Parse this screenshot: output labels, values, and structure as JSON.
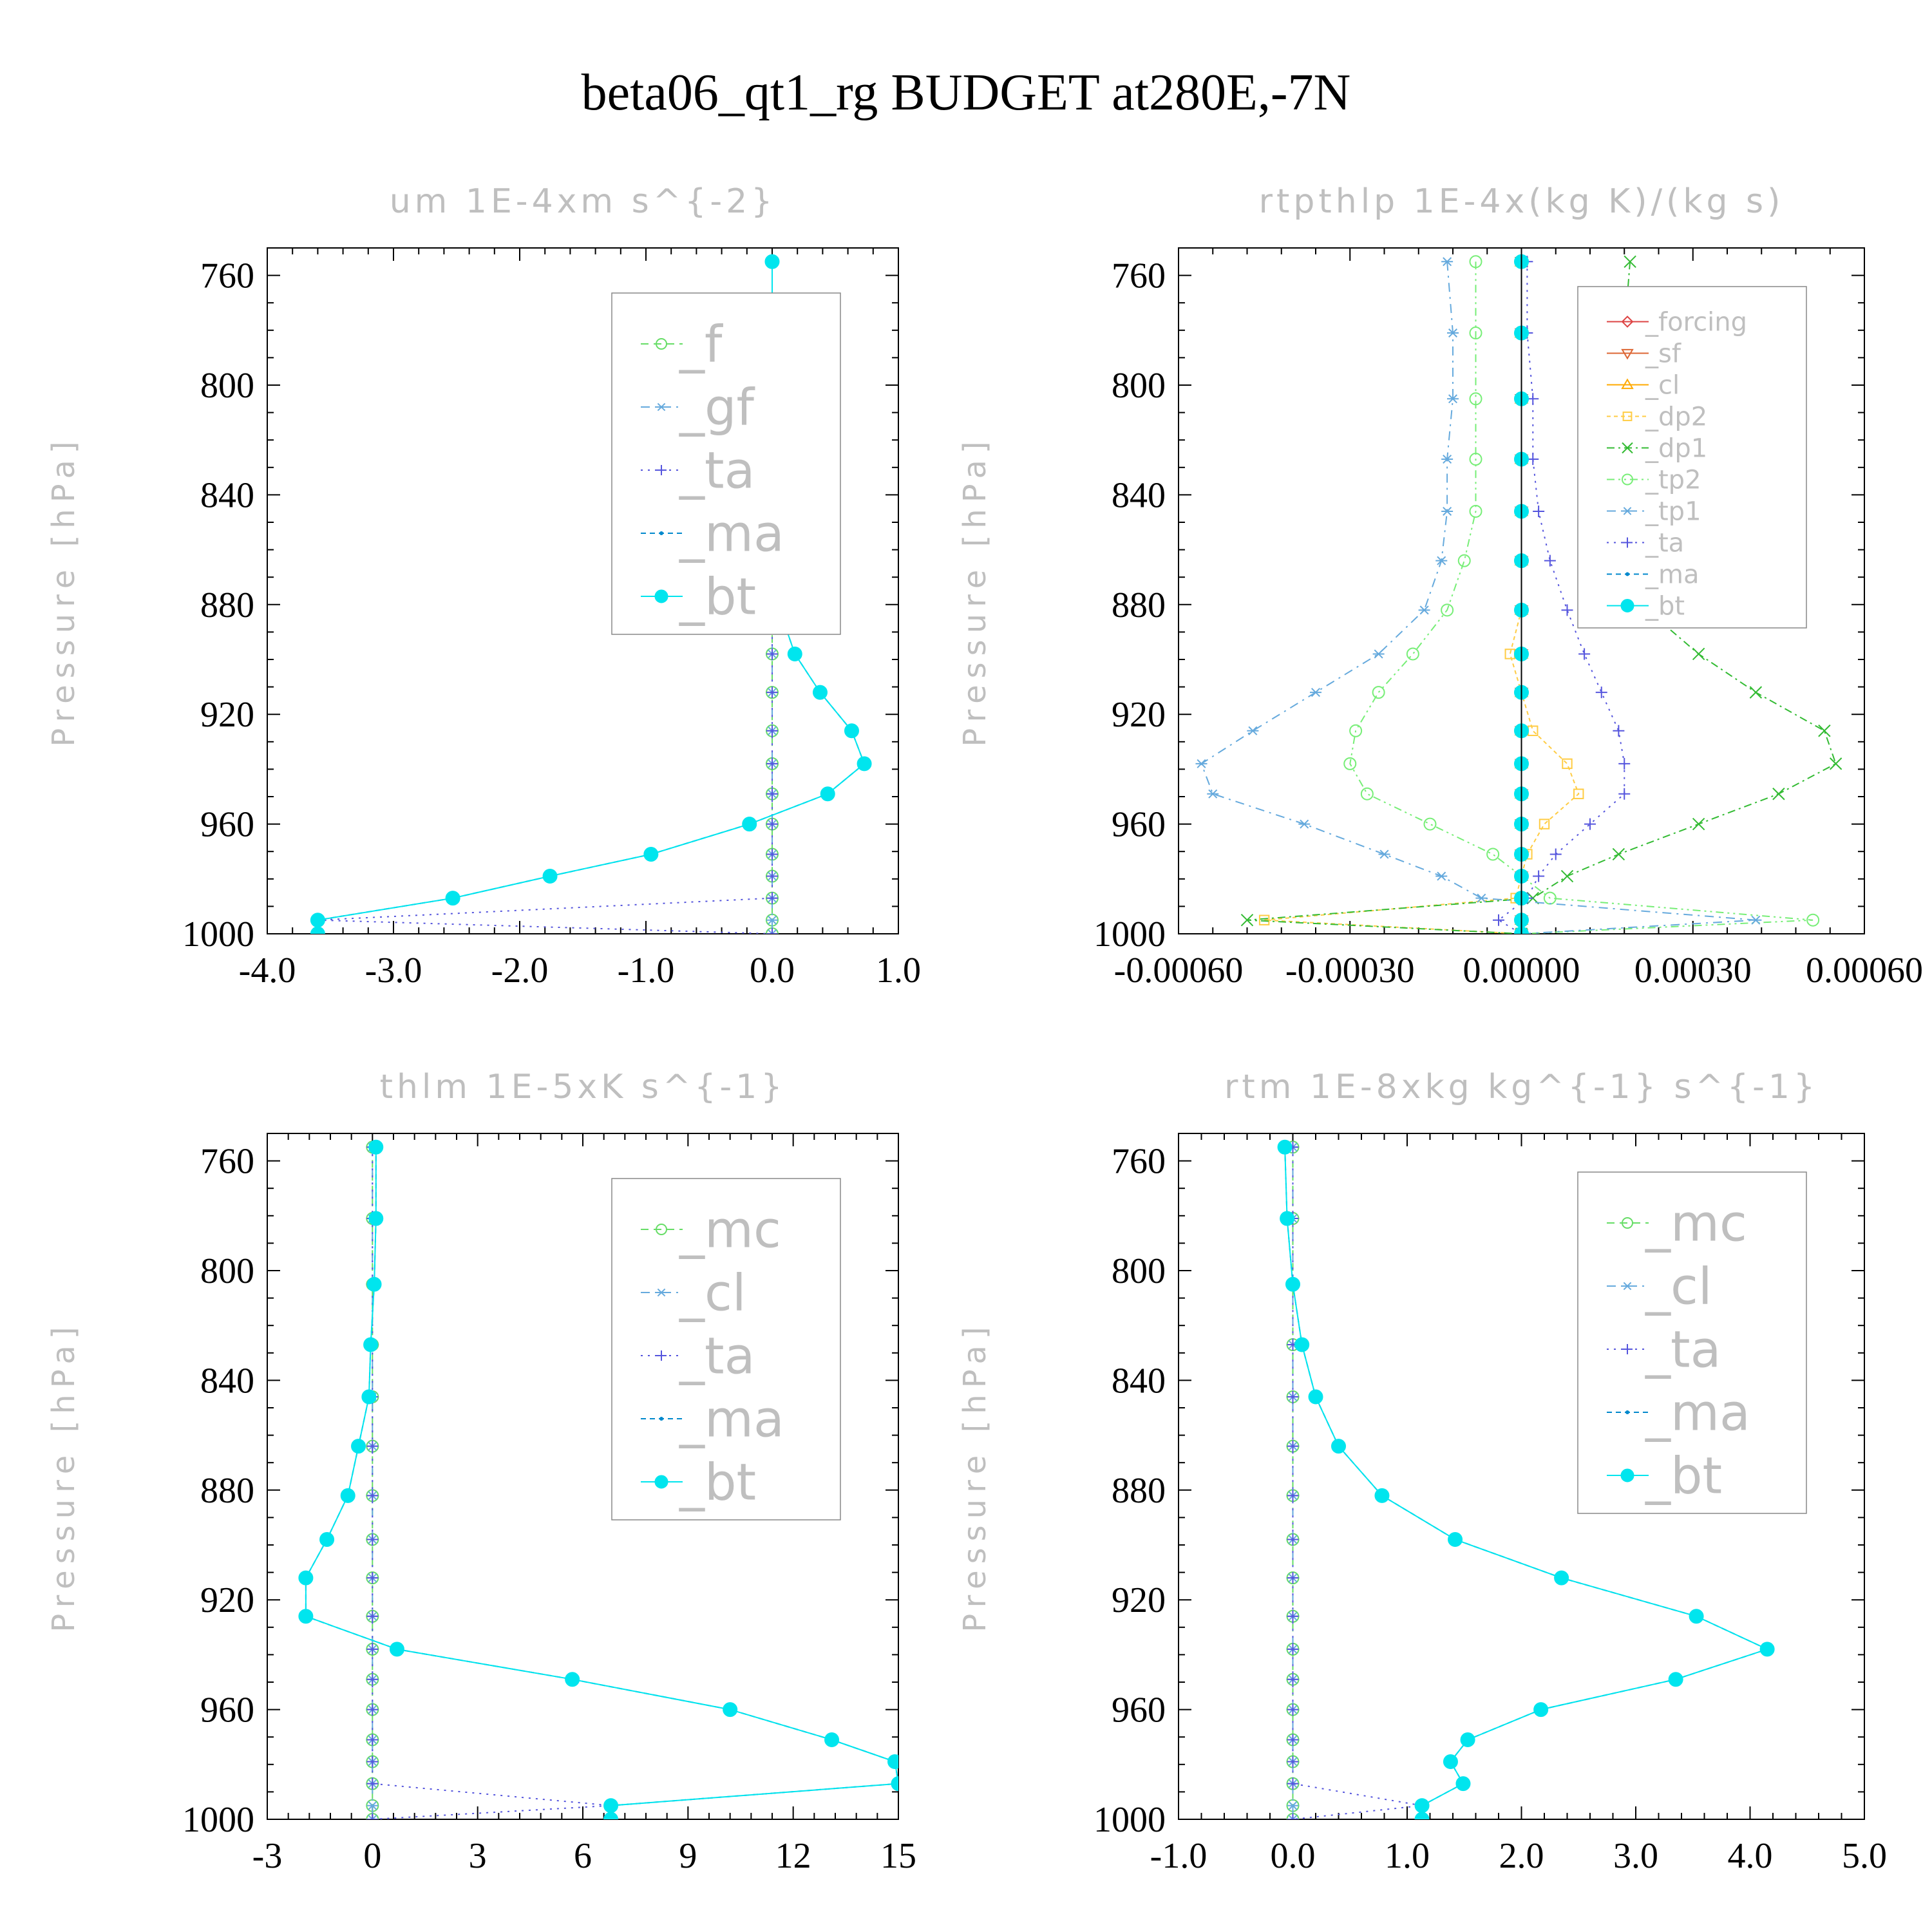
{
  "figure": {
    "title": "beta06_qt1_rg  BUDGET at280E,-7N"
  },
  "chart_data": [
    {
      "type": "line",
      "title": "um   1E-4xm s^{-2}",
      "ylabel": "Pressure [hPa]",
      "xlabel": "",
      "xlim": [
        -4.0,
        1.0
      ],
      "ylim": [
        750,
        1000
      ],
      "y_reversed": true,
      "xticks": [
        -4.0,
        -3.0,
        -2.0,
        -1.0,
        0.0,
        1.0
      ],
      "xticklabels": [
        "-4.0",
        "-3.0",
        "-2.0",
        "-1.0",
        "0.0",
        "1.0"
      ],
      "yticks": [
        760,
        800,
        840,
        880,
        920,
        960,
        1000
      ],
      "yticklabels": [
        "760",
        "800",
        "840",
        "880",
        "920",
        "960",
        "1000"
      ],
      "legend_position": "top-right",
      "pressure": [
        755,
        781,
        805,
        827,
        846,
        864,
        882,
        898,
        912,
        926,
        938,
        949,
        960,
        971,
        979,
        987,
        995,
        1000
      ],
      "series": [
        {
          "name": "_f",
          "color": "#66dd66",
          "marker": "circle-open",
          "dash": "12,8",
          "values": [
            0,
            0,
            0,
            0,
            0,
            0,
            0,
            0,
            0,
            0,
            0,
            0,
            0,
            0,
            0,
            0,
            0,
            0
          ]
        },
        {
          "name": "_gf",
          "color": "#66aadd",
          "marker": "asterisk",
          "dash": "14,8,3,8",
          "values": [
            0,
            0,
            0,
            0,
            0,
            0,
            0,
            0,
            0,
            0,
            0,
            0,
            0,
            0,
            0,
            0,
            0,
            0
          ]
        },
        {
          "name": "_ta",
          "color": "#5555dd",
          "marker": "plus",
          "dash": "3,8",
          "values": [
            0,
            0,
            0,
            0,
            0,
            0,
            0,
            0,
            0,
            0,
            0,
            0,
            0,
            0,
            0,
            0,
            -3.6,
            0
          ]
        },
        {
          "name": "_ma",
          "color": "#0088cc",
          "marker": "dot",
          "dash": "8,6",
          "values": [
            0,
            0,
            0,
            0,
            0,
            0.01,
            0.06,
            0.18,
            0.38,
            0.63,
            0.73,
            0.44,
            -0.18,
            -0.96,
            -1.76,
            -2.53,
            -3.6,
            -3.6
          ]
        },
        {
          "name": "_bt",
          "color": "#00e5ee",
          "marker": "filled-circle",
          "dash": "",
          "values": [
            0,
            0,
            0,
            0,
            0,
            0.01,
            0.06,
            0.18,
            0.38,
            0.63,
            0.73,
            0.44,
            -0.18,
            -0.96,
            -1.76,
            -2.53,
            -3.6,
            -3.6
          ]
        }
      ]
    },
    {
      "type": "line",
      "title": "rtpthlp   1E-4x(kg K)/(kg s)",
      "ylabel": "Pressure [hPa]",
      "xlabel": "",
      "xlim": [
        -0.0006,
        0.0006
      ],
      "ylim": [
        750,
        1000
      ],
      "y_reversed": true,
      "xticks": [
        -0.0006,
        -0.0003,
        0.0,
        0.0003,
        0.0006
      ],
      "xticklabels": [
        "-0.00060",
        "-0.00030",
        "0.00000",
        "0.00030",
        "0.00060"
      ],
      "yticks": [
        760,
        800,
        840,
        880,
        920,
        960,
        1000
      ],
      "yticklabels": [
        "760",
        "800",
        "840",
        "880",
        "920",
        "960",
        "1000"
      ],
      "legend_position": "top-right",
      "pressure": [
        755,
        781,
        805,
        827,
        846,
        864,
        882,
        898,
        912,
        926,
        938,
        949,
        960,
        971,
        979,
        987,
        995,
        1000
      ],
      "series": [
        {
          "name": "_forcing",
          "color": "#dd4444",
          "marker": "diamond-open",
          "dash": "",
          "values": [
            0,
            0,
            0,
            0,
            0,
            0,
            0,
            0,
            0,
            0,
            0,
            0,
            0,
            0,
            0,
            0,
            0,
            0
          ]
        },
        {
          "name": "_sf",
          "color": "#dd6633",
          "marker": "triangle-down-open",
          "dash": "",
          "values": [
            0,
            0,
            0,
            0,
            0,
            0,
            0,
            0,
            0,
            0,
            0,
            0,
            0,
            0,
            0,
            0,
            0,
            0
          ]
        },
        {
          "name": "_cl",
          "color": "#ffaa00",
          "marker": "triangle-up-open",
          "dash": "",
          "values": [
            0,
            0,
            0,
            0,
            0,
            0,
            0,
            0,
            0,
            0,
            0,
            0,
            0,
            0,
            0,
            0,
            0,
            0
          ]
        },
        {
          "name": "_dp2",
          "color": "#ffcc44",
          "marker": "square-open",
          "dash": "6,5",
          "values": [
            0,
            0,
            0,
            0,
            0,
            0,
            0,
            -2e-05,
            0,
            2e-05,
            8e-05,
            0.0001,
            4e-05,
            1e-05,
            0,
            -1e-05,
            -0.00045,
            0
          ]
        },
        {
          "name": "_dp1",
          "color": "#33bb33",
          "marker": "x",
          "dash": "12,6,3,6",
          "values": [
            0.00019,
            0.00018,
            0.00018,
            0.00018,
            0.00018,
            0.00019,
            0.00022,
            0.00031,
            0.00041,
            0.00053,
            0.00055,
            0.00045,
            0.00031,
            0.00017,
            8e-05,
            2e-05,
            -0.00048,
            0
          ]
        },
        {
          "name": "_tp2",
          "color": "#77ee77",
          "marker": "circle-open",
          "dash": "12,6,3,6,3,6",
          "values": [
            -8e-05,
            -8e-05,
            -8e-05,
            -8e-05,
            -8e-05,
            -0.0001,
            -0.00013,
            -0.00019,
            -0.00025,
            -0.00029,
            -0.0003,
            -0.00027,
            -0.00016,
            -5e-05,
            0,
            5e-05,
            0.00051,
            0
          ]
        },
        {
          "name": "_tp1",
          "color": "#66aadd",
          "marker": "asterisk",
          "dash": "14,8,3,8",
          "values": [
            -0.00013,
            -0.00012,
            -0.00012,
            -0.00013,
            -0.00013,
            -0.00014,
            -0.00017,
            -0.00025,
            -0.00036,
            -0.00047,
            -0.00056,
            -0.00054,
            -0.00038,
            -0.00024,
            -0.00014,
            -7e-05,
            0.00041,
            0
          ]
        },
        {
          "name": "_ta",
          "color": "#5555dd",
          "marker": "plus",
          "dash": "3,8",
          "values": [
            1e-05,
            1e-05,
            2e-05,
            2e-05,
            3e-05,
            5e-05,
            8e-05,
            0.00011,
            0.00014,
            0.00017,
            0.00018,
            0.00018,
            0.00012,
            6e-05,
            3e-05,
            1e-05,
            -4e-05,
            0
          ]
        },
        {
          "name": "_ma",
          "color": "#0088cc",
          "marker": "dot",
          "dash": "8,6",
          "values": [
            0,
            0,
            0,
            0,
            0,
            0,
            0,
            0,
            0,
            0,
            0,
            0,
            0,
            0,
            0,
            0,
            0,
            0
          ]
        },
        {
          "name": "_bt",
          "color": "#00e5ee",
          "marker": "filled-circle",
          "dash": "",
          "values": [
            0,
            0,
            0,
            0,
            0,
            0,
            0,
            0,
            0,
            0,
            0,
            0,
            0,
            0,
            0,
            0,
            0,
            0
          ]
        }
      ]
    },
    {
      "type": "line",
      "title": "thlm   1E-5xK s^{-1}",
      "ylabel": "Pressure [hPa]",
      "xlabel": "",
      "xlim": [
        -3,
        15
      ],
      "ylim": [
        750,
        1000
      ],
      "y_reversed": true,
      "xticks": [
        -3,
        0,
        3,
        6,
        9,
        12,
        15
      ],
      "xticklabels": [
        "-3",
        "0",
        "3",
        "6",
        "9",
        "12",
        "15"
      ],
      "yticks": [
        760,
        800,
        840,
        880,
        920,
        960,
        1000
      ],
      "yticklabels": [
        "760",
        "800",
        "840",
        "880",
        "920",
        "960",
        "1000"
      ],
      "legend_position": "top-right",
      "pressure": [
        755,
        781,
        805,
        827,
        846,
        864,
        882,
        898,
        912,
        926,
        938,
        949,
        960,
        971,
        979,
        987,
        995,
        1000
      ],
      "series": [
        {
          "name": "_mc",
          "color": "#66dd66",
          "marker": "circle-open",
          "dash": "12,8",
          "values": [
            0,
            0,
            0,
            0,
            0,
            0,
            0,
            0,
            0,
            0,
            0,
            0,
            0,
            0,
            0,
            0,
            0,
            0
          ]
        },
        {
          "name": "_cl",
          "color": "#66aadd",
          "marker": "asterisk",
          "dash": "14,8,3,8",
          "values": [
            0,
            0,
            0,
            0,
            0,
            0,
            0,
            0,
            0,
            0,
            0,
            0,
            0,
            0,
            0,
            0,
            0,
            0
          ]
        },
        {
          "name": "_ta",
          "color": "#5555dd",
          "marker": "plus",
          "dash": "3,8",
          "values": [
            0,
            0,
            0,
            0,
            0,
            0,
            0,
            0,
            0,
            0,
            0,
            0,
            0,
            0,
            0,
            0,
            6.8,
            0
          ]
        },
        {
          "name": "_ma",
          "color": "#0088cc",
          "marker": "dot",
          "dash": "8,6",
          "values": [
            0.1,
            0.1,
            0.05,
            -0.05,
            -0.1,
            -0.4,
            -0.7,
            -1.3,
            -1.9,
            -1.9,
            0.7,
            5.7,
            10.2,
            13.1,
            14.9,
            15.0,
            6.8,
            6.8
          ]
        },
        {
          "name": "_bt",
          "color": "#00e5ee",
          "marker": "filled-circle",
          "dash": "",
          "values": [
            0.1,
            0.1,
            0.05,
            -0.05,
            -0.1,
            -0.4,
            -0.7,
            -1.3,
            -1.9,
            -1.9,
            0.7,
            5.7,
            10.2,
            13.1,
            14.9,
            15.0,
            6.8,
            6.8
          ]
        }
      ]
    },
    {
      "type": "line",
      "title": "rtm   1E-8xkg kg^{-1} s^{-1}",
      "ylabel": "Pressure [hPa]",
      "xlabel": "",
      "xlim": [
        -1.0,
        5.0
      ],
      "ylim": [
        750,
        1000
      ],
      "y_reversed": true,
      "xticks": [
        -1.0,
        0.0,
        1.0,
        2.0,
        3.0,
        4.0,
        5.0
      ],
      "xticklabels": [
        "-1.0",
        "0.0",
        "1.0",
        "2.0",
        "3.0",
        "4.0",
        "5.0"
      ],
      "yticks": [
        760,
        800,
        840,
        880,
        920,
        960,
        1000
      ],
      "yticklabels": [
        "760",
        "800",
        "840",
        "880",
        "920",
        "960",
        "1000"
      ],
      "legend_position": "top-right",
      "pressure": [
        755,
        781,
        805,
        827,
        846,
        864,
        882,
        898,
        912,
        926,
        938,
        949,
        960,
        971,
        979,
        987,
        995,
        1000
      ],
      "series": [
        {
          "name": "_mc",
          "color": "#66dd66",
          "marker": "circle-open",
          "dash": "12,8",
          "values": [
            0,
            0,
            0,
            0,
            0,
            0,
            0,
            0,
            0,
            0,
            0,
            0,
            0,
            0,
            0,
            0,
            0,
            0
          ]
        },
        {
          "name": "_cl",
          "color": "#66aadd",
          "marker": "asterisk",
          "dash": "14,8,3,8",
          "values": [
            0,
            0,
            0,
            0,
            0,
            0,
            0,
            0,
            0,
            0,
            0,
            0,
            0,
            0,
            0,
            0,
            0,
            0
          ]
        },
        {
          "name": "_ta",
          "color": "#5555dd",
          "marker": "plus",
          "dash": "3,8",
          "values": [
            0,
            0,
            0,
            0,
            0,
            0,
            0,
            0,
            0,
            0,
            0,
            0,
            0,
            0,
            0,
            0,
            1.13,
            0
          ]
        },
        {
          "name": "_ma",
          "color": "#0088cc",
          "marker": "dot",
          "dash": "8,6",
          "values": [
            -0.07,
            -0.05,
            0.0,
            0.08,
            0.2,
            0.4,
            0.78,
            1.42,
            2.35,
            3.53,
            4.15,
            3.35,
            2.17,
            1.53,
            1.38,
            1.49,
            1.13,
            1.13
          ]
        },
        {
          "name": "_bt",
          "color": "#00e5ee",
          "marker": "filled-circle",
          "dash": "",
          "values": [
            -0.07,
            -0.05,
            0.0,
            0.08,
            0.2,
            0.4,
            0.78,
            1.42,
            2.35,
            3.53,
            4.15,
            3.35,
            2.17,
            1.53,
            1.38,
            1.49,
            1.13,
            1.13
          ]
        }
      ]
    }
  ]
}
